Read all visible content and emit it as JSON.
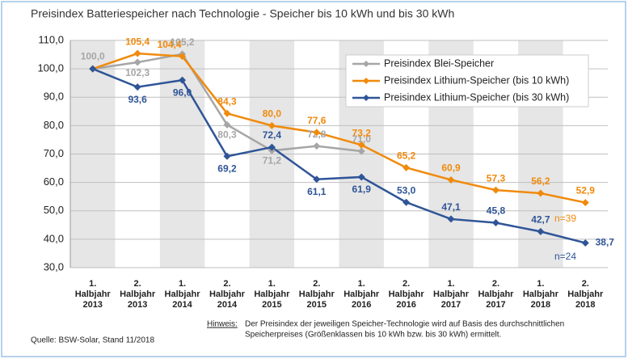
{
  "chart_data": {
    "type": "line",
    "title": "Preisindex Batteriespeicher nach Technologie - Speicher bis 10 kWh und bis 30 kWh",
    "categories": [
      [
        "1.",
        "Halbjahr",
        "2013"
      ],
      [
        "2.",
        "Halbjahr",
        "2013"
      ],
      [
        "1.",
        "Halbjahr",
        "2014"
      ],
      [
        "2.",
        "Halbjahr",
        "2014"
      ],
      [
        "1.",
        "Halbjahr",
        "2015"
      ],
      [
        "2.",
        "Halbjahr",
        "2015"
      ],
      [
        "1.",
        "Halbjahr",
        "2016"
      ],
      [
        "2.",
        "Halbjahr",
        "2016"
      ],
      [
        "1.",
        "Halbjahr",
        "2017"
      ],
      [
        "2.",
        "Halbjahr",
        "2017"
      ],
      [
        "1.",
        "Halbjahr",
        "2018"
      ],
      [
        "2.",
        "Halbjahr",
        "2018"
      ]
    ],
    "series": [
      {
        "name": "Preisindex Blei-Speicher",
        "color": "#a6a6a6",
        "values": [
          100.0,
          102.3,
          105.2,
          80.3,
          71.2,
          72.8,
          71.0,
          null,
          null,
          null,
          null,
          null
        ],
        "value_labels": [
          "100,0",
          "102,3",
          "105,2",
          "80,3",
          "71,2",
          "72,8",
          "71,0",
          null,
          null,
          null,
          null,
          null
        ]
      },
      {
        "name": "Preisindex Lithium-Speicher (bis 10 kWh)",
        "color": "#f08a0c",
        "values": [
          100.0,
          105.4,
          104.4,
          84.3,
          80.0,
          77.6,
          73.2,
          65.2,
          60.9,
          57.3,
          56.2,
          52.9
        ],
        "value_labels": [
          null,
          "105,4",
          "104,4",
          "84,3",
          "80,0",
          "77,6",
          "73,2",
          "65,2",
          "60,9",
          "57,3",
          "56,2",
          "52,9"
        ]
      },
      {
        "name": "Preisindex Lithium-Speicher (bis 30 kWh)",
        "color": "#2f5597",
        "values": [
          100.0,
          93.6,
          96.0,
          69.2,
          72.4,
          61.1,
          61.9,
          53.0,
          47.1,
          45.8,
          42.7,
          38.7
        ],
        "value_labels": [
          null,
          "93,6",
          "96,0",
          "69,2",
          "72,4",
          "61,1",
          "61,9",
          "53,0",
          "47,1",
          "45,8",
          "42,7",
          "38,7"
        ]
      }
    ],
    "ylim": [
      30,
      110
    ],
    "yticks": [
      {
        "value": 30,
        "label": "30,0"
      },
      {
        "value": 40,
        "label": "40,0"
      },
      {
        "value": 50,
        "label": "50,0"
      },
      {
        "value": 60,
        "label": "60,0"
      },
      {
        "value": 70,
        "label": "70,0"
      },
      {
        "value": 80,
        "label": "80,0"
      },
      {
        "value": 90,
        "label": "90,0"
      },
      {
        "value": 100,
        "label": "100,0"
      },
      {
        "value": 110,
        "label": "110,0"
      }
    ],
    "grid": true,
    "legend": "upper right",
    "annotations": {
      "n_orange": "n=39",
      "n_blue": "n=24",
      "note_label": "Hinweis:",
      "note_lines": [
        "Der Preisindex der jeweiligen Speicher-Technologie wird auf Basis des  durchschnittlichen",
        "Speicherpreises (Größenklassen bis 10 kWh bzw. bis 30 kWh) ermittelt."
      ],
      "source": "Quelle: BSW-Solar, Stand 11/2018"
    }
  }
}
